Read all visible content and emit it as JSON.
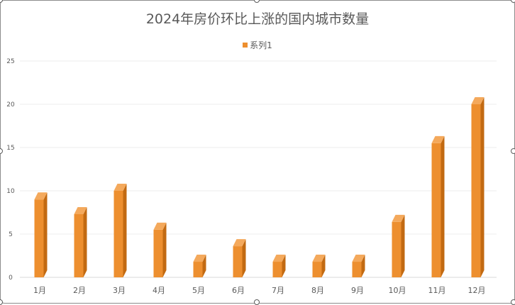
{
  "chart_data": {
    "type": "bar",
    "title": "2024年房价环比上涨的国内城市数量",
    "categories": [
      "1月",
      "2月",
      "3月",
      "4月",
      "5月",
      "6月",
      "7月",
      "8月",
      "9月",
      "10月",
      "11月",
      "12月"
    ],
    "series": [
      {
        "name": "系列1",
        "values": [
          9,
          7.3,
          10,
          5.5,
          1.8,
          3.6,
          1.8,
          1.8,
          1.8,
          6.4,
          15.5,
          20
        ]
      }
    ],
    "y_ticks": [
      0,
      5,
      10,
      15,
      20,
      25
    ],
    "ylim": [
      0,
      25
    ],
    "grid": true,
    "legend_position": "top",
    "colors": {
      "bar_front": "#ed8f2f",
      "bar_top": "#f4a95c",
      "bar_side": "#c26a12",
      "grid": "#eeeeee"
    }
  }
}
